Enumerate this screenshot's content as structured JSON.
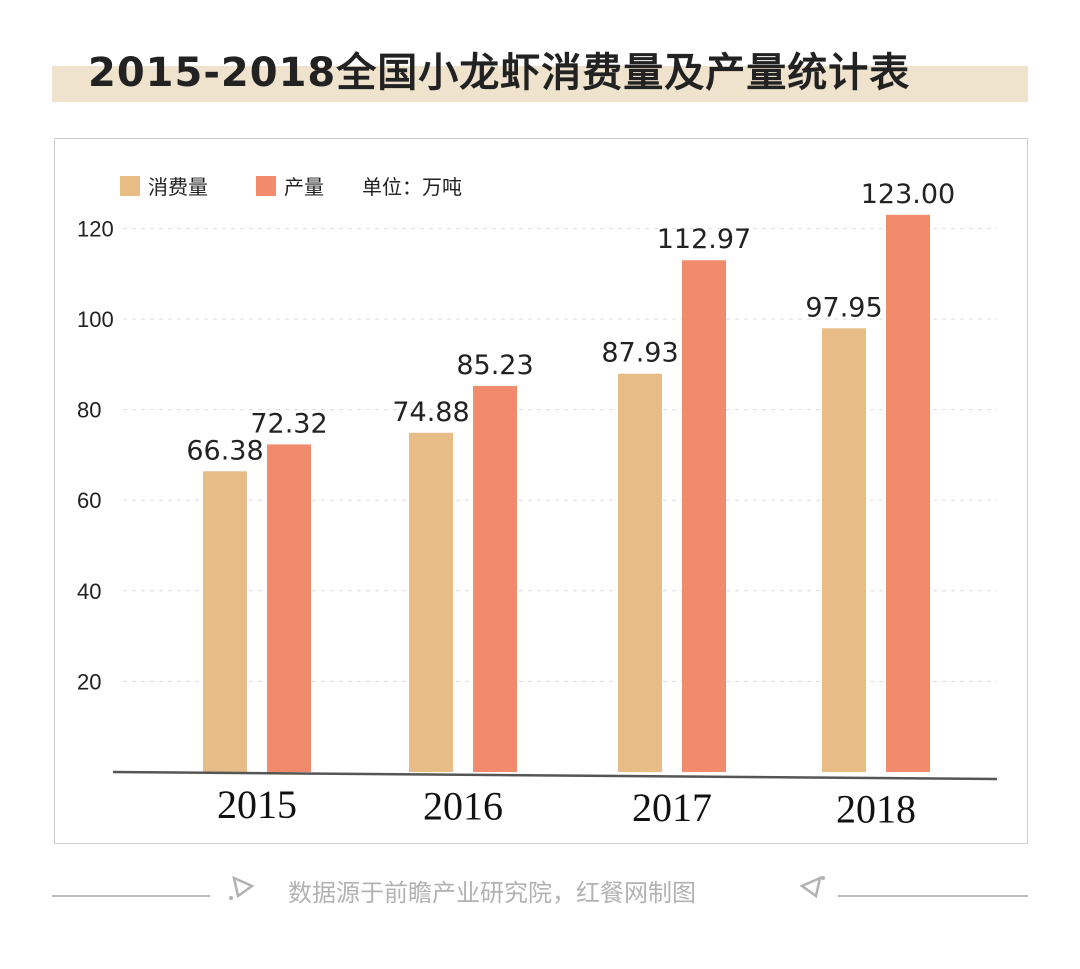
{
  "title": "2015-2018全国小龙虾消费量及产量统计表",
  "footer": {
    "source": "数据源于前瞻产业研究院，红餐网制图"
  },
  "icons": {
    "left": "triangle-arrow-icon",
    "right": "triangle-arrow-icon"
  },
  "colors": {
    "consumption": "#e8bc86",
    "production": "#f28a6c",
    "title_band": "#efe3cd",
    "axis": "#555555",
    "grid": "#dddddd",
    "footer": "#bdbdbd"
  },
  "chart_data": {
    "type": "bar",
    "title": "2015-2018全国小龙虾消费量及产量统计表",
    "unit_label": "单位：万吨",
    "categories": [
      "2015",
      "2016",
      "2017",
      "2018"
    ],
    "series": [
      {
        "name": "消费量",
        "values": [
          66.38,
          74.88,
          87.93,
          97.95
        ],
        "labels": [
          "66.38",
          "74.88",
          "87.93",
          "97.95"
        ],
        "color": "#e8bc86"
      },
      {
        "name": "产量",
        "values": [
          72.32,
          85.23,
          112.97,
          123.0
        ],
        "labels": [
          "72.32",
          "85.23",
          "112.97",
          "123.00"
        ],
        "color": "#f28a6c"
      }
    ],
    "yticks": [
      "20",
      "40",
      "60",
      "80",
      "100",
      "120"
    ],
    "ylim": [
      0,
      125
    ],
    "grid": true,
    "legend_position": "top-left"
  }
}
